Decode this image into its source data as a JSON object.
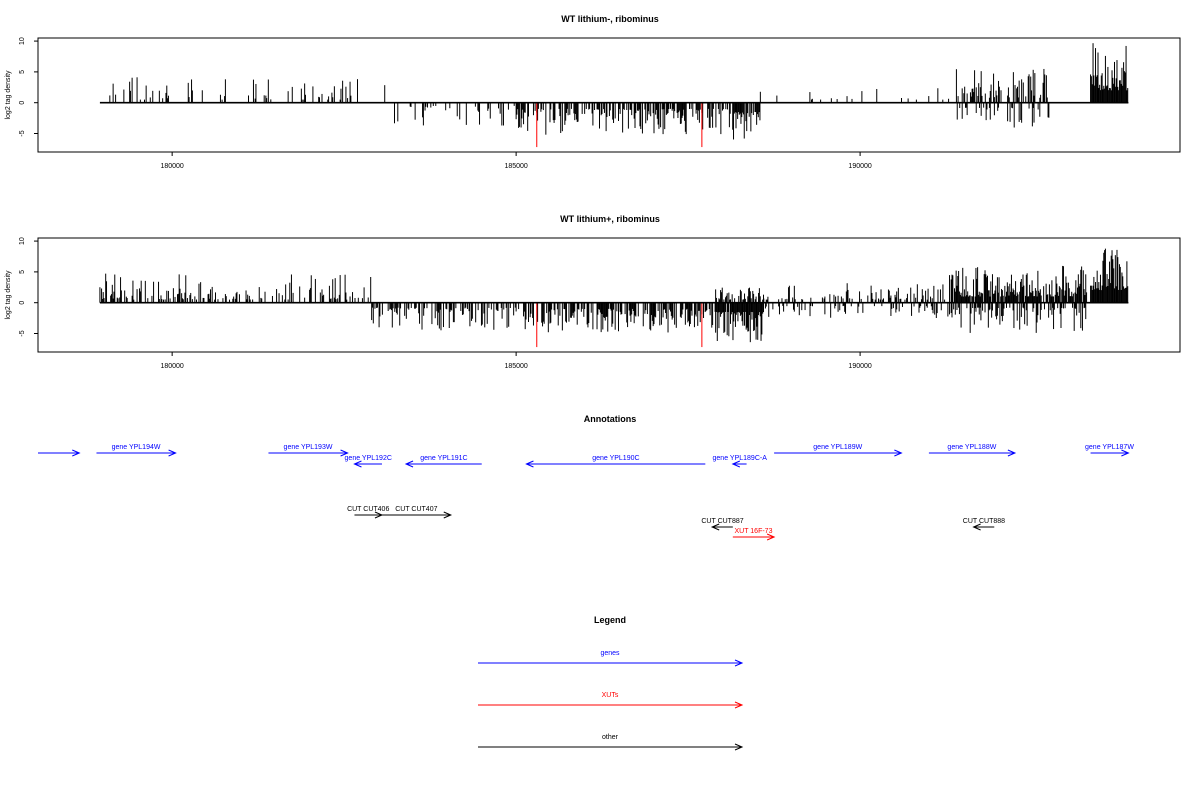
{
  "colors": {
    "genes": "#0000ff",
    "xuts": "#ff0000",
    "other": "#000000",
    "signal": "#000000",
    "highlight": "#ff0000"
  },
  "chart_data": [
    {
      "type": "bar",
      "title": "WT lithium-, ribominus",
      "ylabel": "log2 tag density",
      "xlim": [
        178050,
        194650
      ],
      "ylim": [
        -8,
        10.5
      ],
      "xticks": [
        180000,
        185000,
        190000
      ],
      "xtick_labels": [
        "180000",
        "185000",
        "190000"
      ],
      "yticks": [
        -5,
        0,
        5,
        10
      ],
      "ytick_labels": [
        "-5",
        "0",
        "5",
        "10"
      ],
      "covered_range": [
        178950,
        193900
      ],
      "segments": [
        {
          "from": 178950,
          "to": 183100,
          "sign": 1,
          "density": 0.15,
          "amp": [
            0.5,
            4.2
          ]
        },
        {
          "from": 183100,
          "to": 185000,
          "sign": -1,
          "density": 0.2,
          "amp": [
            0.5,
            4.2
          ]
        },
        {
          "from": 185000,
          "to": 188100,
          "sign": -1,
          "density": 0.55,
          "amp": [
            1.0,
            5.2
          ]
        },
        {
          "from": 188100,
          "to": 188550,
          "sign": -1,
          "density": 0.8,
          "amp": [
            1.5,
            6.0
          ]
        },
        {
          "from": 188550,
          "to": 191400,
          "sign": 1,
          "density": 0.05,
          "amp": [
            0.5,
            2.5
          ]
        },
        {
          "from": 191400,
          "to": 192750,
          "sign": 1,
          "density": 0.45,
          "amp": [
            0.8,
            5.5
          ]
        },
        {
          "from": 191400,
          "to": 192750,
          "sign": -1,
          "density": 0.25,
          "amp": [
            0.8,
            4.5
          ]
        },
        {
          "from": 193350,
          "to": 193900,
          "sign": 1,
          "density": 1.0,
          "amp": [
            2.0,
            9.8
          ]
        }
      ],
      "highlight_bars": [
        {
          "x": 185300,
          "y": -7.2
        },
        {
          "x": 187700,
          "y": -7.2
        }
      ]
    },
    {
      "type": "bar",
      "title": "WT lithium+, ribominus",
      "ylabel": "log2 tag density",
      "xlim": [
        178050,
        194650
      ],
      "ylim": [
        -8,
        10.5
      ],
      "xticks": [
        180000,
        185000,
        190000
      ],
      "xtick_labels": [
        "180000",
        "185000",
        "190000"
      ],
      "yticks": [
        -5,
        0,
        5,
        10
      ],
      "ytick_labels": [
        "-5",
        "0",
        "5",
        "10"
      ],
      "covered_range": [
        178950,
        193900
      ],
      "segments": [
        {
          "from": 178950,
          "to": 182900,
          "sign": 1,
          "density": 0.35,
          "amp": [
            0.5,
            4.8
          ]
        },
        {
          "from": 182900,
          "to": 185000,
          "sign": -1,
          "density": 0.45,
          "amp": [
            0.8,
            4.5
          ]
        },
        {
          "from": 185000,
          "to": 187900,
          "sign": -1,
          "density": 0.65,
          "amp": [
            1.0,
            5.0
          ]
        },
        {
          "from": 187900,
          "to": 188600,
          "sign": 1,
          "density": 0.6,
          "amp": [
            0.5,
            2.5
          ]
        },
        {
          "from": 187900,
          "to": 188600,
          "sign": -1,
          "density": 0.9,
          "amp": [
            1.5,
            6.5
          ]
        },
        {
          "from": 188600,
          "to": 191300,
          "sign": 1,
          "density": 0.3,
          "amp": [
            0.5,
            3.2
          ]
        },
        {
          "from": 188600,
          "to": 191300,
          "sign": -1,
          "density": 0.2,
          "amp": [
            0.5,
            2.5
          ]
        },
        {
          "from": 191300,
          "to": 193300,
          "sign": 1,
          "density": 0.85,
          "amp": [
            1.0,
            6.0
          ]
        },
        {
          "from": 191300,
          "to": 193300,
          "sign": -1,
          "density": 0.55,
          "amp": [
            0.8,
            5.0
          ]
        },
        {
          "from": 193350,
          "to": 193900,
          "sign": 1,
          "density": 1.0,
          "amp": [
            2.0,
            9.6
          ]
        }
      ],
      "highlight_bars": [
        {
          "x": 185300,
          "y": -7.2
        },
        {
          "x": 187700,
          "y": -7.2
        }
      ]
    }
  ],
  "annotations": {
    "title": "Annotations",
    "features": [
      {
        "label": "",
        "kind": "gene",
        "row": 0,
        "strand": "+",
        "start": 178050,
        "end": 178650
      },
      {
        "label": "gene YPL194W",
        "kind": "gene",
        "row": 0,
        "strand": "+",
        "start": 178900,
        "end": 180050
      },
      {
        "label": "gene YPL193W",
        "kind": "gene",
        "row": 0,
        "strand": "+",
        "start": 181400,
        "end": 182550
      },
      {
        "label": "gene YPL192C",
        "kind": "gene",
        "row": 1,
        "strand": "-",
        "start": 182650,
        "end": 183050
      },
      {
        "label": "gene YPL191C",
        "kind": "gene",
        "row": 1,
        "strand": "-",
        "start": 183400,
        "end": 184500
      },
      {
        "label": "gene YPL190C",
        "kind": "gene",
        "row": 1,
        "strand": "-",
        "start": 185150,
        "end": 187750
      },
      {
        "label": "gene YPL189C-A",
        "kind": "gene",
        "row": 1,
        "strand": "-",
        "start": 188150,
        "end": 188350
      },
      {
        "label": "gene YPL189W",
        "kind": "gene",
        "row": 0,
        "strand": "+",
        "start": 188750,
        "end": 190600
      },
      {
        "label": "gene YPL188W",
        "kind": "gene",
        "row": 0,
        "strand": "+",
        "start": 191000,
        "end": 192250
      },
      {
        "label": "gene YPL187W",
        "kind": "gene",
        "row": 0,
        "strand": "+",
        "start": 193350,
        "end": 193900
      },
      {
        "label": "CUT CUT406",
        "kind": "other",
        "row": 2,
        "strand": "+",
        "start": 182650,
        "end": 183050
      },
      {
        "label": "CUT CUT407",
        "kind": "other",
        "row": 2,
        "strand": "+",
        "start": 183050,
        "end": 184050
      },
      {
        "label": "CUT CUT887",
        "kind": "other",
        "row": 3,
        "strand": "-",
        "start": 187850,
        "end": 188150
      },
      {
        "label": "XUT 16F-73",
        "kind": "xut",
        "row": 4,
        "strand": "+",
        "start": 188150,
        "end": 188750
      },
      {
        "label": "CUT CUT888",
        "kind": "other",
        "row": 3,
        "strand": "-",
        "start": 191650,
        "end": 191950
      }
    ]
  },
  "legend": {
    "title": "Legend",
    "items": [
      {
        "label": "genes",
        "kind": "gene"
      },
      {
        "label": "XUTs",
        "kind": "xut"
      },
      {
        "label": "other",
        "kind": "other"
      }
    ]
  }
}
